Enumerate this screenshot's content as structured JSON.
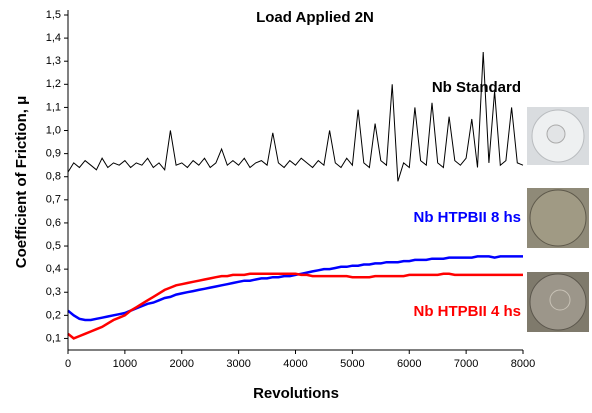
{
  "chart_data": {
    "type": "line",
    "title": "Load Applied 2N",
    "x_label": "Revolutions",
    "y_label": "Coefficient of Friction, μ",
    "xlim": [
      0,
      8000
    ],
    "xticks": [
      0,
      1000,
      2000,
      3000,
      4000,
      5000,
      6000,
      7000,
      8000
    ],
    "ylim": [
      0.05,
      1.5
    ],
    "yticks": [
      {
        "value": 0.1,
        "label": "0,1"
      },
      {
        "value": 0.2,
        "label": "0,2"
      },
      {
        "value": 0.3,
        "label": "0,3"
      },
      {
        "value": 0.4,
        "label": "0,4"
      },
      {
        "value": 0.5,
        "label": "0,5"
      },
      {
        "value": 0.6,
        "label": "0,6"
      },
      {
        "value": 0.7,
        "label": "0,7"
      },
      {
        "value": 0.8,
        "label": "0,8"
      },
      {
        "value": 0.9,
        "label": "0,9"
      },
      {
        "value": 1.0,
        "label": "1,0"
      },
      {
        "value": 1.1,
        "label": "1,1"
      },
      {
        "value": 1.2,
        "label": "1,2"
      },
      {
        "value": 1.3,
        "label": "1,3"
      },
      {
        "value": 1.4,
        "label": "1,4"
      },
      {
        "value": 1.5,
        "label": "1,5"
      }
    ],
    "x": [
      0,
      100,
      200,
      300,
      400,
      500,
      600,
      700,
      800,
      900,
      1000,
      1100,
      1200,
      1300,
      1400,
      1500,
      1600,
      1700,
      1800,
      1900,
      2000,
      2100,
      2200,
      2300,
      2400,
      2500,
      2600,
      2700,
      2800,
      2900,
      3000,
      3100,
      3200,
      3300,
      3400,
      3500,
      3600,
      3700,
      3800,
      3900,
      4000,
      4100,
      4200,
      4300,
      4400,
      4500,
      4600,
      4700,
      4800,
      4900,
      5000,
      5100,
      5200,
      5300,
      5400,
      5500,
      5600,
      5700,
      5800,
      5900,
      6000,
      6100,
      6200,
      6300,
      6400,
      6500,
      6600,
      6700,
      6800,
      6900,
      7000,
      7100,
      7200,
      7300,
      7400,
      7500,
      7600,
      7700,
      7800,
      7900,
      8000
    ],
    "series": [
      {
        "name": "Nb Standard",
        "color": "#000000",
        "values": [
          0.82,
          0.86,
          0.84,
          0.87,
          0.85,
          0.83,
          0.88,
          0.84,
          0.86,
          0.85,
          0.87,
          0.84,
          0.86,
          0.85,
          0.88,
          0.84,
          0.86,
          0.83,
          1.0,
          0.85,
          0.86,
          0.84,
          0.87,
          0.85,
          0.88,
          0.84,
          0.86,
          0.92,
          0.85,
          0.87,
          0.85,
          0.88,
          0.84,
          0.86,
          0.87,
          0.85,
          0.99,
          0.86,
          0.84,
          0.87,
          0.85,
          0.88,
          0.86,
          0.84,
          0.87,
          0.85,
          1.0,
          0.86,
          0.84,
          0.88,
          0.85,
          1.09,
          0.86,
          0.84,
          1.03,
          0.87,
          0.85,
          1.2,
          0.78,
          0.86,
          0.84,
          1.1,
          0.87,
          0.85,
          1.12,
          0.86,
          0.84,
          1.06,
          0.87,
          0.85,
          0.88,
          1.05,
          0.84,
          1.34,
          0.86,
          1.17,
          0.85,
          0.87,
          1.1,
          0.86,
          0.85
        ]
      },
      {
        "name": "Nb HTPBII 8 hs",
        "color": "#0000ff",
        "values": [
          0.22,
          0.2,
          0.185,
          0.18,
          0.18,
          0.185,
          0.19,
          0.195,
          0.2,
          0.205,
          0.21,
          0.22,
          0.23,
          0.24,
          0.25,
          0.255,
          0.265,
          0.275,
          0.28,
          0.29,
          0.295,
          0.3,
          0.305,
          0.31,
          0.315,
          0.32,
          0.325,
          0.33,
          0.335,
          0.34,
          0.345,
          0.35,
          0.35,
          0.355,
          0.36,
          0.36,
          0.365,
          0.365,
          0.37,
          0.37,
          0.375,
          0.38,
          0.385,
          0.39,
          0.395,
          0.4,
          0.4,
          0.405,
          0.41,
          0.41,
          0.415,
          0.415,
          0.42,
          0.42,
          0.425,
          0.425,
          0.43,
          0.43,
          0.43,
          0.435,
          0.435,
          0.44,
          0.44,
          0.44,
          0.445,
          0.445,
          0.445,
          0.45,
          0.45,
          0.45,
          0.45,
          0.45,
          0.455,
          0.455,
          0.455,
          0.45,
          0.455,
          0.455,
          0.455,
          0.455,
          0.455
        ]
      },
      {
        "name": "Nb HTPBII 4 hs",
        "color": "#ff0000",
        "values": [
          0.12,
          0.1,
          0.11,
          0.12,
          0.13,
          0.14,
          0.15,
          0.165,
          0.18,
          0.19,
          0.2,
          0.22,
          0.235,
          0.25,
          0.265,
          0.28,
          0.295,
          0.31,
          0.32,
          0.33,
          0.335,
          0.34,
          0.345,
          0.35,
          0.355,
          0.36,
          0.365,
          0.37,
          0.37,
          0.375,
          0.375,
          0.375,
          0.38,
          0.38,
          0.38,
          0.38,
          0.38,
          0.38,
          0.38,
          0.38,
          0.38,
          0.375,
          0.375,
          0.37,
          0.37,
          0.37,
          0.37,
          0.37,
          0.37,
          0.37,
          0.365,
          0.365,
          0.365,
          0.365,
          0.37,
          0.37,
          0.37,
          0.37,
          0.37,
          0.37,
          0.375,
          0.375,
          0.375,
          0.375,
          0.375,
          0.375,
          0.38,
          0.38,
          0.375,
          0.375,
          0.375,
          0.375,
          0.375,
          0.375,
          0.375,
          0.375,
          0.375,
          0.375,
          0.375,
          0.375,
          0.375
        ]
      }
    ]
  }
}
